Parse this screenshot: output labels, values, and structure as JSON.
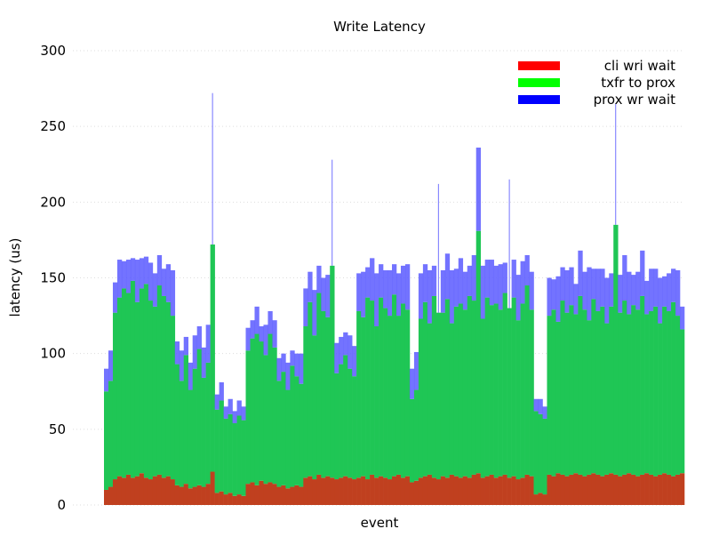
{
  "chart_data": {
    "type": "bar",
    "stacked": true,
    "title": "Write Latency",
    "xlabel": "event",
    "ylabel": "latency (us)",
    "ylim": [
      0,
      300
    ],
    "yticks": [
      0,
      50,
      100,
      150,
      200,
      250,
      300
    ],
    "grid": true,
    "legend_position": "top-right",
    "note": "sampled approximation of per-event stacked latencies",
    "series": [
      {
        "name": "cli wri wait",
        "color": "#ff0000",
        "draw_color": "#c0401f",
        "values": [
          10,
          12,
          17,
          19,
          18,
          20,
          18,
          19,
          21,
          18,
          17,
          19,
          20,
          18,
          19,
          17,
          13,
          12,
          14,
          11,
          12,
          13,
          12,
          14,
          22,
          8,
          9,
          7,
          8,
          6,
          7,
          6,
          14,
          15,
          13,
          16,
          14,
          15,
          14,
          12,
          13,
          11,
          12,
          13,
          12,
          18,
          19,
          17,
          20,
          18,
          19,
          18,
          17,
          18,
          19,
          18,
          17,
          18,
          19,
          17,
          20,
          18,
          19,
          18,
          17,
          19,
          20,
          18,
          19,
          15,
          16,
          18,
          19,
          20,
          18,
          17,
          19,
          18,
          20,
          19,
          18,
          19,
          18,
          20,
          21,
          18,
          19,
          20,
          18,
          19,
          20,
          18,
          19,
          17,
          18,
          20,
          19,
          7,
          8,
          7,
          20,
          19,
          21,
          20,
          19,
          20,
          21,
          20,
          19,
          20,
          21,
          20,
          19,
          20,
          21,
          20,
          19,
          20,
          21,
          20,
          19,
          20,
          21,
          20,
          19,
          20,
          21,
          20,
          19,
          20,
          21
        ]
      },
      {
        "name": "txfr to prox",
        "color": "#00ff00",
        "draw_color": "#1fc655",
        "values": [
          65,
          70,
          110,
          118,
          125,
          120,
          130,
          115,
          122,
          128,
          118,
          112,
          125,
          120,
          115,
          108,
          80,
          70,
          85,
          65,
          78,
          90,
          72,
          80,
          150,
          55,
          60,
          50,
          52,
          48,
          52,
          50,
          88,
          95,
          100,
          92,
          85,
          98,
          90,
          70,
          75,
          65,
          80,
          72,
          68,
          100,
          115,
          95,
          120,
          110,
          105,
          140,
          70,
          75,
          80,
          72,
          68,
          110,
          105,
          120,
          115,
          100,
          118,
          112,
          108,
          120,
          105,
          115,
          110,
          55,
          60,
          105,
          115,
          100,
          120,
          110,
          108,
          118,
          100,
          112,
          115,
          110,
          120,
          115,
          160,
          105,
          118,
          112,
          115,
          110,
          120,
          112,
          118,
          105,
          115,
          125,
          110,
          55,
          52,
          50,
          105,
          110,
          100,
          115,
          108,
          112,
          105,
          118,
          110,
          102,
          115,
          108,
          112,
          100,
          110,
          165,
          108,
          115,
          105,
          112,
          110,
          118,
          105,
          108,
          112,
          100,
          110,
          108,
          115,
          105,
          95
        ]
      },
      {
        "name": "prox wr wait",
        "color": "#0000ff",
        "draw_color": "#5a5aff",
        "values": [
          15,
          20,
          20,
          25,
          18,
          22,
          15,
          28,
          20,
          18,
          25,
          22,
          20,
          18,
          25,
          30,
          15,
          20,
          12,
          18,
          22,
          15,
          20,
          25,
          100,
          10,
          12,
          8,
          10,
          8,
          10,
          9,
          15,
          12,
          18,
          10,
          20,
          15,
          18,
          15,
          12,
          18,
          10,
          15,
          20,
          25,
          20,
          30,
          18,
          22,
          28,
          70,
          20,
          18,
          15,
          22,
          20,
          25,
          30,
          20,
          28,
          35,
          22,
          25,
          30,
          20,
          28,
          25,
          30,
          20,
          25,
          30,
          25,
          35,
          20,
          85,
          28,
          30,
          35,
          25,
          30,
          25,
          20,
          30,
          55,
          35,
          25,
          30,
          25,
          30,
          20,
          85,
          25,
          30,
          28,
          20,
          25,
          8,
          10,
          8,
          25,
          20,
          30,
          22,
          28,
          25,
          20,
          30,
          25,
          35,
          20,
          28,
          25,
          30,
          22,
          80,
          25,
          30,
          28,
          20,
          25,
          30,
          22,
          28,
          25,
          30,
          20,
          25,
          22,
          30,
          15
        ]
      }
    ]
  }
}
